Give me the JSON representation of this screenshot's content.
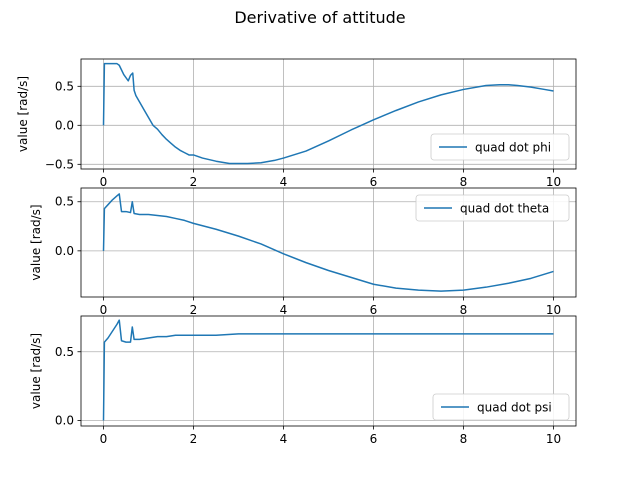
{
  "figure": {
    "title": "Derivative of attitude"
  },
  "colors": {
    "line": "#1f77b4",
    "grid": "#b0b0b0",
    "axes": "#000000",
    "legend_border": "#cccccc"
  },
  "chart_data": [
    {
      "type": "line",
      "xlabel": "",
      "ylabel": "value [rad/s]",
      "xlim": [
        -0.5,
        10.5
      ],
      "ylim": [
        -0.56,
        0.85
      ],
      "xticks": [
        0,
        2,
        4,
        6,
        8,
        10
      ],
      "yticks": [
        -0.5,
        0.0,
        0.5
      ],
      "ytick_labels": [
        "−0.5",
        "0.0",
        "0.5"
      ],
      "grid": true,
      "legend_loc": "lower right",
      "series": [
        {
          "name": "quad dot phi",
          "x": [
            0,
            0.02,
            0.1,
            0.2,
            0.3,
            0.35,
            0.45,
            0.55,
            0.6,
            0.65,
            0.68,
            0.72,
            0.8,
            0.9,
            1.0,
            1.1,
            1.2,
            1.3,
            1.4,
            1.5,
            1.6,
            1.7,
            1.8,
            1.9,
            2.0,
            2.2,
            2.5,
            2.8,
            3.0,
            3.2,
            3.5,
            3.8,
            4.0,
            4.5,
            5.0,
            5.5,
            6.0,
            6.5,
            7.0,
            7.5,
            8.0,
            8.5,
            8.8,
            9.0,
            9.2,
            9.5,
            9.8,
            10.0
          ],
          "y": [
            0.0,
            0.79,
            0.79,
            0.79,
            0.79,
            0.77,
            0.65,
            0.57,
            0.64,
            0.67,
            0.45,
            0.38,
            0.3,
            0.2,
            0.1,
            0.0,
            -0.05,
            -0.12,
            -0.18,
            -0.23,
            -0.28,
            -0.32,
            -0.35,
            -0.38,
            -0.38,
            -0.42,
            -0.46,
            -0.49,
            -0.49,
            -0.49,
            -0.48,
            -0.45,
            -0.42,
            -0.33,
            -0.2,
            -0.06,
            0.07,
            0.19,
            0.3,
            0.39,
            0.46,
            0.51,
            0.52,
            0.52,
            0.51,
            0.49,
            0.46,
            0.44
          ]
        }
      ]
    },
    {
      "type": "line",
      "xlabel": "",
      "ylabel": "value [rad/s]",
      "xlim": [
        -0.5,
        10.5
      ],
      "ylim": [
        -0.47,
        0.64
      ],
      "xticks": [
        0,
        2,
        4,
        6,
        8,
        10
      ],
      "yticks": [
        0.0,
        0.5
      ],
      "ytick_labels": [
        "0.0",
        "0.5"
      ],
      "grid": true,
      "legend_loc": "upper right",
      "series": [
        {
          "name": "quad dot theta",
          "x": [
            0,
            0.02,
            0.1,
            0.2,
            0.3,
            0.35,
            0.4,
            0.5,
            0.6,
            0.64,
            0.68,
            0.8,
            1.0,
            1.2,
            1.4,
            1.6,
            1.8,
            2.0,
            2.5,
            3.0,
            3.5,
            4.0,
            4.5,
            5.0,
            5.5,
            6.0,
            6.5,
            7.0,
            7.5,
            8.0,
            8.5,
            9.0,
            9.5,
            10.0
          ],
          "y": [
            0.0,
            0.43,
            0.47,
            0.52,
            0.56,
            0.58,
            0.4,
            0.4,
            0.39,
            0.5,
            0.38,
            0.37,
            0.37,
            0.36,
            0.35,
            0.33,
            0.31,
            0.28,
            0.22,
            0.15,
            0.07,
            -0.03,
            -0.12,
            -0.2,
            -0.27,
            -0.34,
            -0.38,
            -0.4,
            -0.41,
            -0.4,
            -0.37,
            -0.33,
            -0.28,
            -0.21
          ]
        }
      ]
    },
    {
      "type": "line",
      "xlabel": "",
      "ylabel": "value [rad/s]",
      "xlim": [
        -0.5,
        10.5
      ],
      "ylim": [
        -0.04,
        0.76
      ],
      "xticks": [
        0,
        2,
        4,
        6,
        8,
        10
      ],
      "yticks": [
        0.0,
        0.5
      ],
      "ytick_labels": [
        "0.0",
        "0.5"
      ],
      "grid": true,
      "legend_loc": "lower right",
      "series": [
        {
          "name": "quad dot psi",
          "x": [
            0,
            0.02,
            0.1,
            0.2,
            0.3,
            0.35,
            0.4,
            0.5,
            0.6,
            0.64,
            0.68,
            0.8,
            1.0,
            1.2,
            1.4,
            1.6,
            1.8,
            2.0,
            2.5,
            3.0,
            3.5,
            4.0,
            4.5,
            5.0,
            5.5,
            6.0,
            6.5,
            7.0,
            7.5,
            8.0,
            8.5,
            9.0,
            9.5,
            10.0
          ],
          "y": [
            0.0,
            0.57,
            0.6,
            0.65,
            0.7,
            0.73,
            0.58,
            0.57,
            0.57,
            0.68,
            0.59,
            0.59,
            0.6,
            0.61,
            0.61,
            0.62,
            0.62,
            0.62,
            0.62,
            0.63,
            0.63,
            0.63,
            0.63,
            0.63,
            0.63,
            0.63,
            0.63,
            0.63,
            0.63,
            0.63,
            0.63,
            0.63,
            0.63,
            0.63
          ]
        }
      ]
    }
  ]
}
